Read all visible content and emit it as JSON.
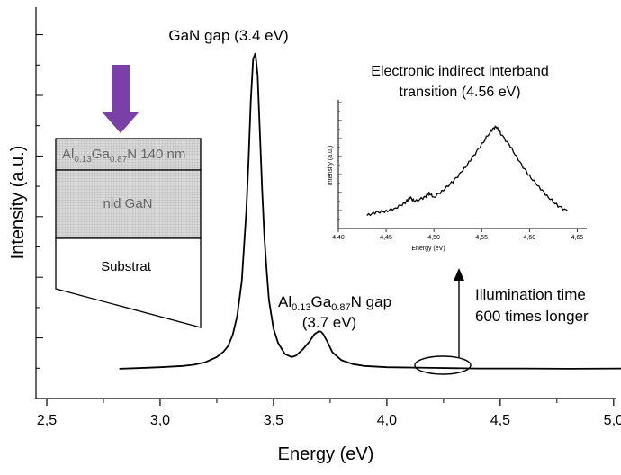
{
  "chart_data": {
    "type": "line",
    "xlabel": "Energy (eV)",
    "ylabel": "Intensity (a.u.)",
    "xlim": [
      2.5,
      5.1
    ],
    "x_ticks": [
      "2,5",
      "3,0",
      "3,5",
      "4,0",
      "4,5",
      "5,0"
    ],
    "x_tick_values": [
      2.5,
      3.0,
      3.5,
      4.0,
      4.5,
      5.0
    ],
    "ylim": [
      0,
      1.1
    ],
    "grid": false,
    "series": [
      {
        "values_note": "",
        "x": [
          2.82,
          2.9,
          3.0,
          3.1,
          3.15,
          3.2,
          3.25,
          3.28,
          3.3,
          3.32,
          3.34,
          3.36,
          3.38,
          3.39,
          3.4,
          3.41,
          3.42,
          3.43,
          3.44,
          3.45,
          3.46,
          3.47,
          3.48,
          3.5,
          3.52,
          3.55,
          3.58,
          3.6,
          3.63,
          3.66,
          3.68,
          3.7,
          3.71,
          3.72,
          3.74,
          3.76,
          3.8,
          3.85,
          3.9,
          4.0,
          4.2,
          4.4,
          4.6,
          4.8,
          5.06
        ],
        "y": [
          0.003,
          0.005,
          0.008,
          0.012,
          0.016,
          0.024,
          0.04,
          0.057,
          0.075,
          0.11,
          0.17,
          0.28,
          0.5,
          0.66,
          0.85,
          0.98,
          1.0,
          0.93,
          0.75,
          0.57,
          0.42,
          0.31,
          0.22,
          0.13,
          0.085,
          0.05,
          0.04,
          0.045,
          0.065,
          0.09,
          0.112,
          0.122,
          0.12,
          0.112,
          0.085,
          0.055,
          0.03,
          0.018,
          0.012,
          0.008,
          0.006,
          0.004,
          0.004,
          0.003,
          0.004
        ]
      }
    ],
    "annotations": {
      "gan_peak": "GaN gap (3.4 eV)",
      "algan_peak_line1_parts": [
        "Al",
        "0.13",
        "Ga",
        "0.87",
        "N gap"
      ],
      "algan_peak_line2": "(3.7 eV)",
      "illumination_line1": "Illumination time",
      "illumination_line2": "600 times longer"
    },
    "inset": {
      "type": "line",
      "title_line1": "Electronic indirect interband",
      "title_line2": "transition (4.56 eV)",
      "xlabel": "Energy (eV)",
      "ylabel": "Intensity (a.u.)",
      "xlim": [
        4.4,
        4.66
      ],
      "x_ticks": [
        "4,40",
        "4,45",
        "4,50",
        "4,55",
        "4,60",
        "4,65"
      ],
      "x_tick_values": [
        4.4,
        4.45,
        4.5,
        4.55,
        4.6,
        4.65
      ],
      "ylim": [
        0,
        1
      ],
      "x": [
        4.43,
        4.44,
        4.45,
        4.46,
        4.47,
        4.475,
        4.48,
        4.49,
        4.495,
        4.5,
        4.51,
        4.52,
        4.53,
        4.54,
        4.55,
        4.56,
        4.565,
        4.57,
        4.58,
        4.59,
        4.6,
        4.61,
        4.62,
        4.63,
        4.64
      ],
      "y": [
        0.03,
        0.06,
        0.07,
        0.1,
        0.15,
        0.2,
        0.16,
        0.2,
        0.24,
        0.2,
        0.27,
        0.35,
        0.45,
        0.57,
        0.7,
        0.83,
        0.87,
        0.8,
        0.68,
        0.53,
        0.4,
        0.3,
        0.2,
        0.12,
        0.07
      ]
    },
    "sample_diagram": {
      "layer_top_parts": [
        "Al",
        "0.13",
        "Ga",
        "0.87",
        "N 140 nm"
      ],
      "layer_middle": "nid GaN",
      "layer_bottom": "Substrat",
      "arrow_color": "#7B3FA8",
      "layer_fill": "#dcdcdc"
    }
  }
}
